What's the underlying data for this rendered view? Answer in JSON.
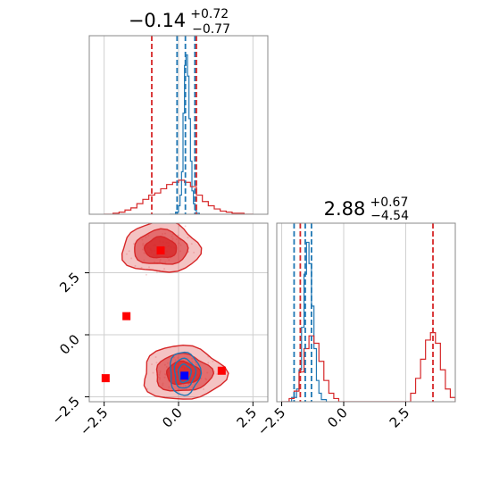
{
  "chart_data": [
    {
      "type": "line",
      "panel": "top-left 1D marginal histogram of parameter 1",
      "title_main": "−0.14",
      "title_sup": "+0.72",
      "title_sub": "−0.77",
      "xlim": [
        -3.0,
        3.0
      ],
      "grid": true,
      "series": [
        {
          "color": "#1f77b4",
          "x": [
            -0.3,
            -0.1,
            0.0,
            0.05,
            0.1,
            0.15,
            0.2,
            0.25,
            0.3,
            0.35,
            0.4,
            0.45,
            0.5,
            0.55,
            0.6,
            0.7
          ],
          "values": [
            0,
            2,
            8,
            18,
            40,
            95,
            140,
            150,
            130,
            90,
            50,
            22,
            10,
            4,
            1,
            0
          ],
          "quantile_lines": [
            -0.05,
            0.23,
            0.55
          ]
        },
        {
          "color": "#d62728",
          "x": [
            -2.5,
            -2.2,
            -2.0,
            -1.8,
            -1.6,
            -1.4,
            -1.2,
            -1.0,
            -0.8,
            -0.6,
            -0.4,
            -0.2,
            0.0,
            0.2,
            0.4,
            0.6,
            0.8,
            1.0,
            1.2,
            1.4,
            1.6,
            1.8,
            2.0,
            2.2,
            2.5
          ],
          "values": [
            0,
            1,
            2,
            4,
            6,
            10,
            14,
            18,
            20,
            24,
            28,
            30,
            32,
            30,
            26,
            18,
            12,
            8,
            5,
            3,
            2,
            1,
            1,
            0,
            0
          ],
          "quantile_lines": [
            -0.9,
            0.6
          ]
        }
      ]
    },
    {
      "type": "line",
      "panel": "bottom-right 1D marginal histogram of parameter 2",
      "title_main": "2.88",
      "title_sup": "+0.67",
      "title_sub": "−4.54",
      "xlim": [
        -2.7,
        4.5
      ],
      "x_ticks": [
        "−2.5",
        "0.0",
        "2.5"
      ],
      "grid": true,
      "series": [
        {
          "color": "#1f77b4",
          "x": [
            -2.3,
            -2.1,
            -1.9,
            -1.8,
            -1.7,
            -1.6,
            -1.5,
            -1.4,
            -1.3,
            -1.2,
            -1.1,
            -1.0,
            -0.9,
            -0.7
          ],
          "values": [
            0,
            4,
            12,
            30,
            70,
            120,
            150,
            130,
            90,
            50,
            20,
            8,
            2,
            0
          ],
          "quantile_lines": [
            -2.0,
            -1.55,
            -1.3
          ]
        },
        {
          "color": "#d62728",
          "x": [
            -2.5,
            -2.2,
            -2.0,
            -1.8,
            -1.6,
            -1.4,
            -1.2,
            -1.0,
            -0.8,
            -0.6,
            -0.4,
            -0.2,
            2.5,
            2.7,
            2.9,
            3.1,
            3.3,
            3.5,
            3.7,
            3.9,
            4.1,
            4.3,
            4.5
          ],
          "values": [
            0,
            3,
            10,
            28,
            50,
            62,
            55,
            38,
            20,
            8,
            3,
            0,
            0,
            8,
            22,
            40,
            58,
            65,
            55,
            30,
            12,
            4,
            0
          ],
          "quantile_lines": [
            -1.75,
            3.6
          ]
        }
      ]
    },
    {
      "type": "scatter",
      "panel": "bottom-left 2D posterior contours",
      "xlim": [
        -3.0,
        3.0
      ],
      "ylim": [
        -2.7,
        4.5
      ],
      "x_ticks": [
        "−2.5",
        "0.0",
        "2.5"
      ],
      "y_ticks": [
        "−2.5",
        "0.0",
        "2.5"
      ],
      "grid": true,
      "contours": [
        {
          "color": "#d62728",
          "center": [
            -0.6,
            3.5
          ],
          "spread": [
            0.9,
            0.7
          ]
        },
        {
          "color": "#d62728",
          "center": [
            0.15,
            -1.55
          ],
          "spread": [
            0.95,
            0.75
          ]
        },
        {
          "color": "#1f77b4",
          "center": [
            0.2,
            -1.55
          ],
          "spread": [
            0.35,
            0.6
          ]
        }
      ],
      "markers": [
        {
          "color": "#ff0000",
          "x": -0.6,
          "y": 3.4
        },
        {
          "color": "#ff0000",
          "x": -1.75,
          "y": 0.75
        },
        {
          "color": "#ff0000",
          "x": -2.45,
          "y": -1.75
        },
        {
          "color": "#ff0000",
          "x": 1.45,
          "y": -1.45
        },
        {
          "color": "#0000ff",
          "x": 0.2,
          "y": -1.65
        }
      ]
    }
  ]
}
